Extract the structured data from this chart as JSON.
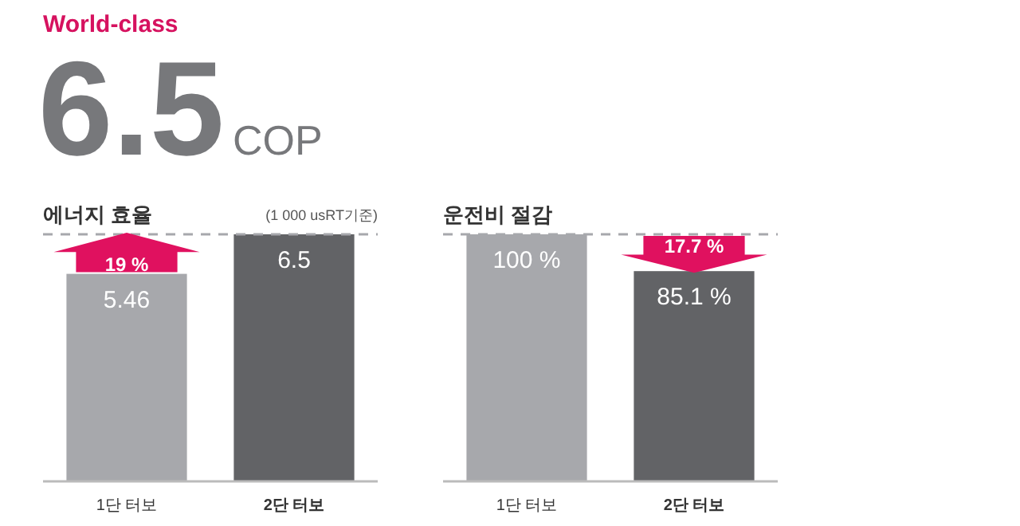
{
  "chart_data": [
    {
      "type": "bar",
      "title": "에너지 효율",
      "subtitle": "(1 000 usRT기준)",
      "categories": [
        "1단 터보",
        "2단 터보"
      ],
      "values": [
        5.46,
        6.5
      ],
      "colors": [
        "#a7a8ac",
        "#626366"
      ],
      "value_labels": [
        "5.46",
        "6.5"
      ],
      "ylim": [
        0,
        6.5
      ],
      "tick_labels": "x",
      "ref_lines": [
        {
          "axis": "y",
          "value": 6.5,
          "color": "#a7a8ac",
          "line_style": "dashed"
        }
      ],
      "annotations": [
        "World-class",
        "6.5",
        "COP",
        "19 %"
      ]
    },
    {
      "type": "bar",
      "title": "운전비 절감",
      "categories": [
        "1단 터보",
        "2단 터보"
      ],
      "values": [
        100,
        85.1
      ],
      "colors": [
        "#a7a8ac",
        "#626366"
      ],
      "value_labels": [
        "100 %",
        "85.1 %"
      ],
      "ylim": [
        0,
        100
      ],
      "tick_labels": "x",
      "ref_lines": [
        {
          "axis": "y",
          "value": 100,
          "color": "#a7a8ac",
          "line_style": "dashed"
        }
      ],
      "annotations": [
        "17.7 %"
      ]
    }
  ]
}
